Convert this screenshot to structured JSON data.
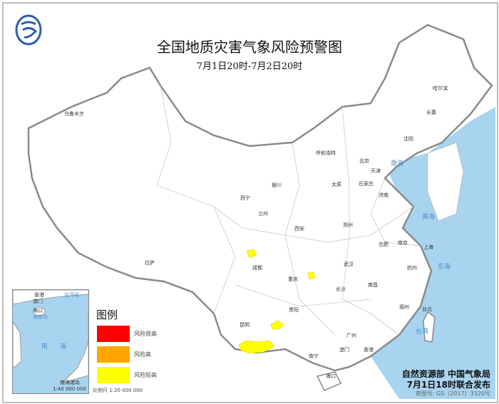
{
  "header": {
    "title": "全国地质灾害气象风险预警图",
    "subtitle": "7月1日20时-7月2日20时",
    "logo": "cma-logo"
  },
  "legend": {
    "title": "图例",
    "items": [
      {
        "label": "风险很高",
        "color": "#ff0000"
      },
      {
        "label": "风险高",
        "color": "#ffa500"
      },
      {
        "label": "风险较高",
        "color": "#ffff00"
      }
    ],
    "scale": "比例尺   1:20 000 000"
  },
  "inset": {
    "labels": [
      "香港",
      "台湾省",
      "澳门",
      "海口",
      "海南岛",
      "南",
      "海",
      "南海诸岛"
    ],
    "scale": "1:40 000 000"
  },
  "cities": [
    "乌鲁木齐",
    "哈尔滨",
    "长春",
    "沈阳",
    "呼和浩特",
    "北京",
    "天津",
    "石家庄",
    "太原",
    "银川",
    "西宁",
    "兰州",
    "济南",
    "郑州",
    "西安",
    "合肥",
    "南京",
    "上海",
    "拉萨",
    "成都",
    "武汉",
    "杭州",
    "重庆",
    "长沙",
    "南昌",
    "贵阳",
    "福州",
    "台北",
    "昆明",
    "广州",
    "香港",
    "澳门",
    "南宁",
    "海口"
  ],
  "seas": [
    "渤海",
    "黄海",
    "东海",
    "台湾"
  ],
  "footer": {
    "publisher": "自然资源部  中国气象局",
    "issued": "7月1日18时联合发布",
    "map_number": "审图号: GS（2017）3320号"
  },
  "colors": {
    "sea": "#a8d4f0",
    "land": "#ffffff",
    "border": "#8a8a8a",
    "warning": "#ffff00"
  }
}
